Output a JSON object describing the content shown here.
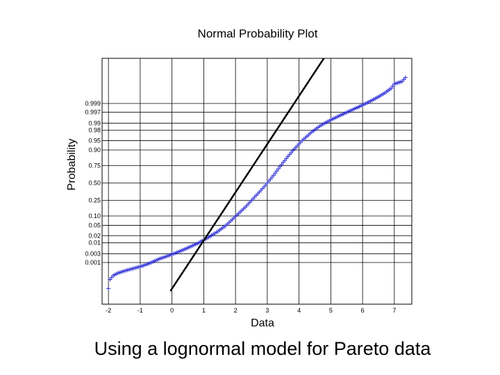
{
  "slide": {
    "caption": "Using a lognormal model for Pareto data"
  },
  "chart_data": {
    "type": "scatter",
    "title": "Normal Probability Plot",
    "xlabel": "Data",
    "ylabel": "Probability",
    "xlim": [
      -2.2,
      7.55
    ],
    "x_ticks": [
      -2,
      -1,
      0,
      1,
      2,
      3,
      4,
      5,
      6,
      7
    ],
    "x_tick_labels": [
      "-2",
      "-1",
      "0",
      "1",
      "2",
      "3",
      "4",
      "5",
      "6",
      "7"
    ],
    "y_ticks": [
      0.001,
      0.003,
      0.01,
      0.02,
      0.05,
      0.1,
      0.25,
      0.5,
      0.75,
      0.9,
      0.95,
      0.98,
      0.99,
      0.997,
      0.999
    ],
    "y_tick_labels": [
      "0.001",
      "0.003",
      "0.01",
      "0.02",
      "0.05",
      "0.10",
      "0.25",
      "0.50",
      "0.75",
      "0.90",
      "0.95",
      "0.98",
      "0.99",
      "0.997",
      "0.999"
    ],
    "grid": true,
    "marker": "+",
    "marker_color": "#2a2ad6",
    "line_color": "#000000",
    "reference_line": {
      "x": [
        -0.05,
        6.2
      ],
      "z": [
        -4.2,
        7.5
      ]
    },
    "series": [
      {
        "x": [
          -2.0,
          -1.95,
          -1.85,
          -1.7,
          -1.5,
          -1.3,
          -1.0,
          -0.7,
          -0.4,
          -0.1,
          0.2,
          0.5,
          0.8,
          1.1,
          1.4,
          1.7,
          2.0,
          2.3,
          2.6,
          2.9,
          3.2,
          3.5,
          3.8,
          4.1,
          4.4,
          4.7,
          5.0,
          5.3,
          5.6,
          5.9,
          6.2,
          6.5,
          6.7,
          6.9,
          7.0,
          7.25,
          7.35
        ],
        "z": [
          -4.1,
          -3.75,
          -3.6,
          -3.5,
          -3.42,
          -3.35,
          -3.25,
          -3.12,
          -2.95,
          -2.82,
          -2.68,
          -2.52,
          -2.35,
          -2.15,
          -1.92,
          -1.65,
          -1.3,
          -0.95,
          -0.55,
          -0.15,
          0.3,
          0.8,
          1.25,
          1.65,
          1.98,
          2.25,
          2.45,
          2.63,
          2.8,
          2.97,
          3.15,
          3.35,
          3.5,
          3.68,
          3.85,
          3.95,
          4.1
        ]
      }
    ]
  }
}
